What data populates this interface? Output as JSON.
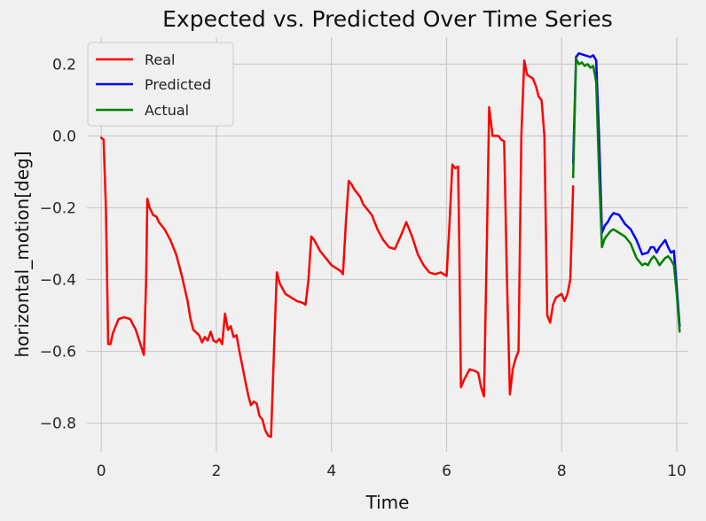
{
  "chart_data": {
    "type": "line",
    "title": "Expected vs. Predicted Over Time Series",
    "xlabel": "Time",
    "ylabel": "horizontal_motion[deg]",
    "xlim": [
      -0.25,
      10.2
    ],
    "ylim": [
      -0.88,
      0.275
    ],
    "xticks": [
      0,
      2,
      4,
      6,
      8,
      10
    ],
    "yticks": [
      0.2,
      0.0,
      -0.2,
      -0.4,
      -0.6,
      -0.8
    ],
    "xtick_labels": [
      "0",
      "2",
      "4",
      "6",
      "8",
      "10"
    ],
    "ytick_labels": [
      "0.2",
      "0.0",
      "−0.2",
      "−0.4",
      "−0.6",
      "−0.8"
    ],
    "grid": true,
    "legend_position": "upper-left",
    "series": [
      {
        "name": "Real",
        "color": "#ff0000",
        "points": [
          [
            0.0,
            -0.005
          ],
          [
            0.04,
            -0.01
          ],
          [
            0.08,
            -0.2
          ],
          [
            0.12,
            -0.58
          ],
          [
            0.16,
            -0.58
          ],
          [
            0.2,
            -0.55
          ],
          [
            0.25,
            -0.53
          ],
          [
            0.3,
            -0.51
          ],
          [
            0.4,
            -0.505
          ],
          [
            0.5,
            -0.51
          ],
          [
            0.6,
            -0.54
          ],
          [
            0.7,
            -0.59
          ],
          [
            0.74,
            -0.61
          ],
          [
            0.78,
            -0.4
          ],
          [
            0.8,
            -0.175
          ],
          [
            0.84,
            -0.2
          ],
          [
            0.9,
            -0.22
          ],
          [
            0.96,
            -0.225
          ],
          [
            1.0,
            -0.24
          ],
          [
            1.1,
            -0.26
          ],
          [
            1.2,
            -0.29
          ],
          [
            1.3,
            -0.33
          ],
          [
            1.4,
            -0.39
          ],
          [
            1.5,
            -0.46
          ],
          [
            1.55,
            -0.51
          ],
          [
            1.6,
            -0.54
          ],
          [
            1.7,
            -0.555
          ],
          [
            1.75,
            -0.575
          ],
          [
            1.8,
            -0.56
          ],
          [
            1.85,
            -0.57
          ],
          [
            1.9,
            -0.545
          ],
          [
            1.95,
            -0.57
          ],
          [
            2.0,
            -0.575
          ],
          [
            2.05,
            -0.565
          ],
          [
            2.1,
            -0.58
          ],
          [
            2.15,
            -0.495
          ],
          [
            2.2,
            -0.54
          ],
          [
            2.25,
            -0.53
          ],
          [
            2.3,
            -0.56
          ],
          [
            2.35,
            -0.555
          ],
          [
            2.4,
            -0.6
          ],
          [
            2.45,
            -0.64
          ],
          [
            2.5,
            -0.68
          ],
          [
            2.55,
            -0.72
          ],
          [
            2.6,
            -0.75
          ],
          [
            2.65,
            -0.74
          ],
          [
            2.7,
            -0.745
          ],
          [
            2.75,
            -0.78
          ],
          [
            2.8,
            -0.79
          ],
          [
            2.85,
            -0.82
          ],
          [
            2.9,
            -0.835
          ],
          [
            2.95,
            -0.838
          ],
          [
            3.0,
            -0.6
          ],
          [
            3.05,
            -0.38
          ],
          [
            3.1,
            -0.41
          ],
          [
            3.2,
            -0.44
          ],
          [
            3.3,
            -0.45
          ],
          [
            3.4,
            -0.46
          ],
          [
            3.5,
            -0.465
          ],
          [
            3.55,
            -0.47
          ],
          [
            3.6,
            -0.4
          ],
          [
            3.65,
            -0.28
          ],
          [
            3.7,
            -0.29
          ],
          [
            3.8,
            -0.32
          ],
          [
            3.9,
            -0.34
          ],
          [
            4.0,
            -0.36
          ],
          [
            4.1,
            -0.37
          ],
          [
            4.15,
            -0.375
          ],
          [
            4.2,
            -0.385
          ],
          [
            4.25,
            -0.24
          ],
          [
            4.3,
            -0.125
          ],
          [
            4.35,
            -0.135
          ],
          [
            4.4,
            -0.15
          ],
          [
            4.5,
            -0.17
          ],
          [
            4.55,
            -0.19
          ],
          [
            4.6,
            -0.2
          ],
          [
            4.7,
            -0.22
          ],
          [
            4.8,
            -0.26
          ],
          [
            4.9,
            -0.29
          ],
          [
            5.0,
            -0.31
          ],
          [
            5.1,
            -0.315
          ],
          [
            5.2,
            -0.28
          ],
          [
            5.3,
            -0.24
          ],
          [
            5.4,
            -0.28
          ],
          [
            5.5,
            -0.33
          ],
          [
            5.6,
            -0.36
          ],
          [
            5.7,
            -0.38
          ],
          [
            5.8,
            -0.385
          ],
          [
            5.9,
            -0.38
          ],
          [
            6.0,
            -0.39
          ],
          [
            6.05,
            -0.25
          ],
          [
            6.1,
            -0.08
          ],
          [
            6.15,
            -0.09
          ],
          [
            6.2,
            -0.085
          ],
          [
            6.22,
            -0.3
          ],
          [
            6.25,
            -0.7
          ],
          [
            6.3,
            -0.68
          ],
          [
            6.4,
            -0.65
          ],
          [
            6.5,
            -0.655
          ],
          [
            6.55,
            -0.66
          ],
          [
            6.6,
            -0.7
          ],
          [
            6.65,
            -0.725
          ],
          [
            6.7,
            -0.3
          ],
          [
            6.74,
            0.08
          ],
          [
            6.8,
            -0.0
          ],
          [
            6.9,
            -0.0
          ],
          [
            6.95,
            -0.01
          ],
          [
            7.0,
            -0.015
          ],
          [
            7.05,
            -0.4
          ],
          [
            7.1,
            -0.72
          ],
          [
            7.15,
            -0.65
          ],
          [
            7.2,
            -0.62
          ],
          [
            7.25,
            -0.6
          ],
          [
            7.3,
            0.0
          ],
          [
            7.35,
            0.21
          ],
          [
            7.4,
            0.17
          ],
          [
            7.5,
            0.16
          ],
          [
            7.55,
            0.14
          ],
          [
            7.6,
            0.11
          ],
          [
            7.65,
            0.1
          ],
          [
            7.7,
            0.0
          ],
          [
            7.75,
            -0.5
          ],
          [
            7.8,
            -0.52
          ],
          [
            7.85,
            -0.47
          ],
          [
            7.9,
            -0.45
          ],
          [
            8.0,
            -0.44
          ],
          [
            8.05,
            -0.46
          ],
          [
            8.1,
            -0.44
          ],
          [
            8.15,
            -0.4
          ],
          [
            8.2,
            -0.14
          ]
        ]
      },
      {
        "name": "Predicted",
        "color": "#0000ff",
        "points": [
          [
            8.2,
            -0.075
          ],
          [
            8.25,
            0.22
          ],
          [
            8.3,
            0.23
          ],
          [
            8.4,
            0.225
          ],
          [
            8.5,
            0.22
          ],
          [
            8.55,
            0.225
          ],
          [
            8.6,
            0.21
          ],
          [
            8.65,
            0.0
          ],
          [
            8.7,
            -0.27
          ],
          [
            8.75,
            -0.25
          ],
          [
            8.8,
            -0.24
          ],
          [
            8.85,
            -0.225
          ],
          [
            8.9,
            -0.215
          ],
          [
            9.0,
            -0.22
          ],
          [
            9.1,
            -0.245
          ],
          [
            9.2,
            -0.26
          ],
          [
            9.3,
            -0.29
          ],
          [
            9.35,
            -0.31
          ],
          [
            9.4,
            -0.33
          ],
          [
            9.5,
            -0.325
          ],
          [
            9.55,
            -0.31
          ],
          [
            9.6,
            -0.31
          ],
          [
            9.65,
            -0.325
          ],
          [
            9.7,
            -0.31
          ],
          [
            9.75,
            -0.3
          ],
          [
            9.8,
            -0.29
          ],
          [
            9.85,
            -0.31
          ],
          [
            9.9,
            -0.325
          ],
          [
            9.95,
            -0.32
          ],
          [
            10.0,
            -0.42
          ],
          [
            10.05,
            -0.53
          ]
        ]
      },
      {
        "name": "Actual",
        "color": "#008000",
        "points": [
          [
            8.2,
            -0.115
          ],
          [
            8.25,
            0.215
          ],
          [
            8.3,
            0.2
          ],
          [
            8.35,
            0.205
          ],
          [
            8.4,
            0.195
          ],
          [
            8.45,
            0.2
          ],
          [
            8.5,
            0.19
          ],
          [
            8.55,
            0.195
          ],
          [
            8.6,
            0.15
          ],
          [
            8.65,
            -0.1
          ],
          [
            8.7,
            -0.31
          ],
          [
            8.75,
            -0.285
          ],
          [
            8.8,
            -0.275
          ],
          [
            8.85,
            -0.265
          ],
          [
            8.9,
            -0.26
          ],
          [
            9.0,
            -0.27
          ],
          [
            9.1,
            -0.28
          ],
          [
            9.2,
            -0.3
          ],
          [
            9.3,
            -0.34
          ],
          [
            9.4,
            -0.36
          ],
          [
            9.45,
            -0.355
          ],
          [
            9.5,
            -0.36
          ],
          [
            9.55,
            -0.345
          ],
          [
            9.6,
            -0.335
          ],
          [
            9.65,
            -0.345
          ],
          [
            9.7,
            -0.36
          ],
          [
            9.75,
            -0.35
          ],
          [
            9.8,
            -0.34
          ],
          [
            9.85,
            -0.335
          ],
          [
            9.9,
            -0.345
          ],
          [
            9.95,
            -0.36
          ],
          [
            10.0,
            -0.44
          ],
          [
            10.05,
            -0.545
          ]
        ]
      }
    ]
  }
}
